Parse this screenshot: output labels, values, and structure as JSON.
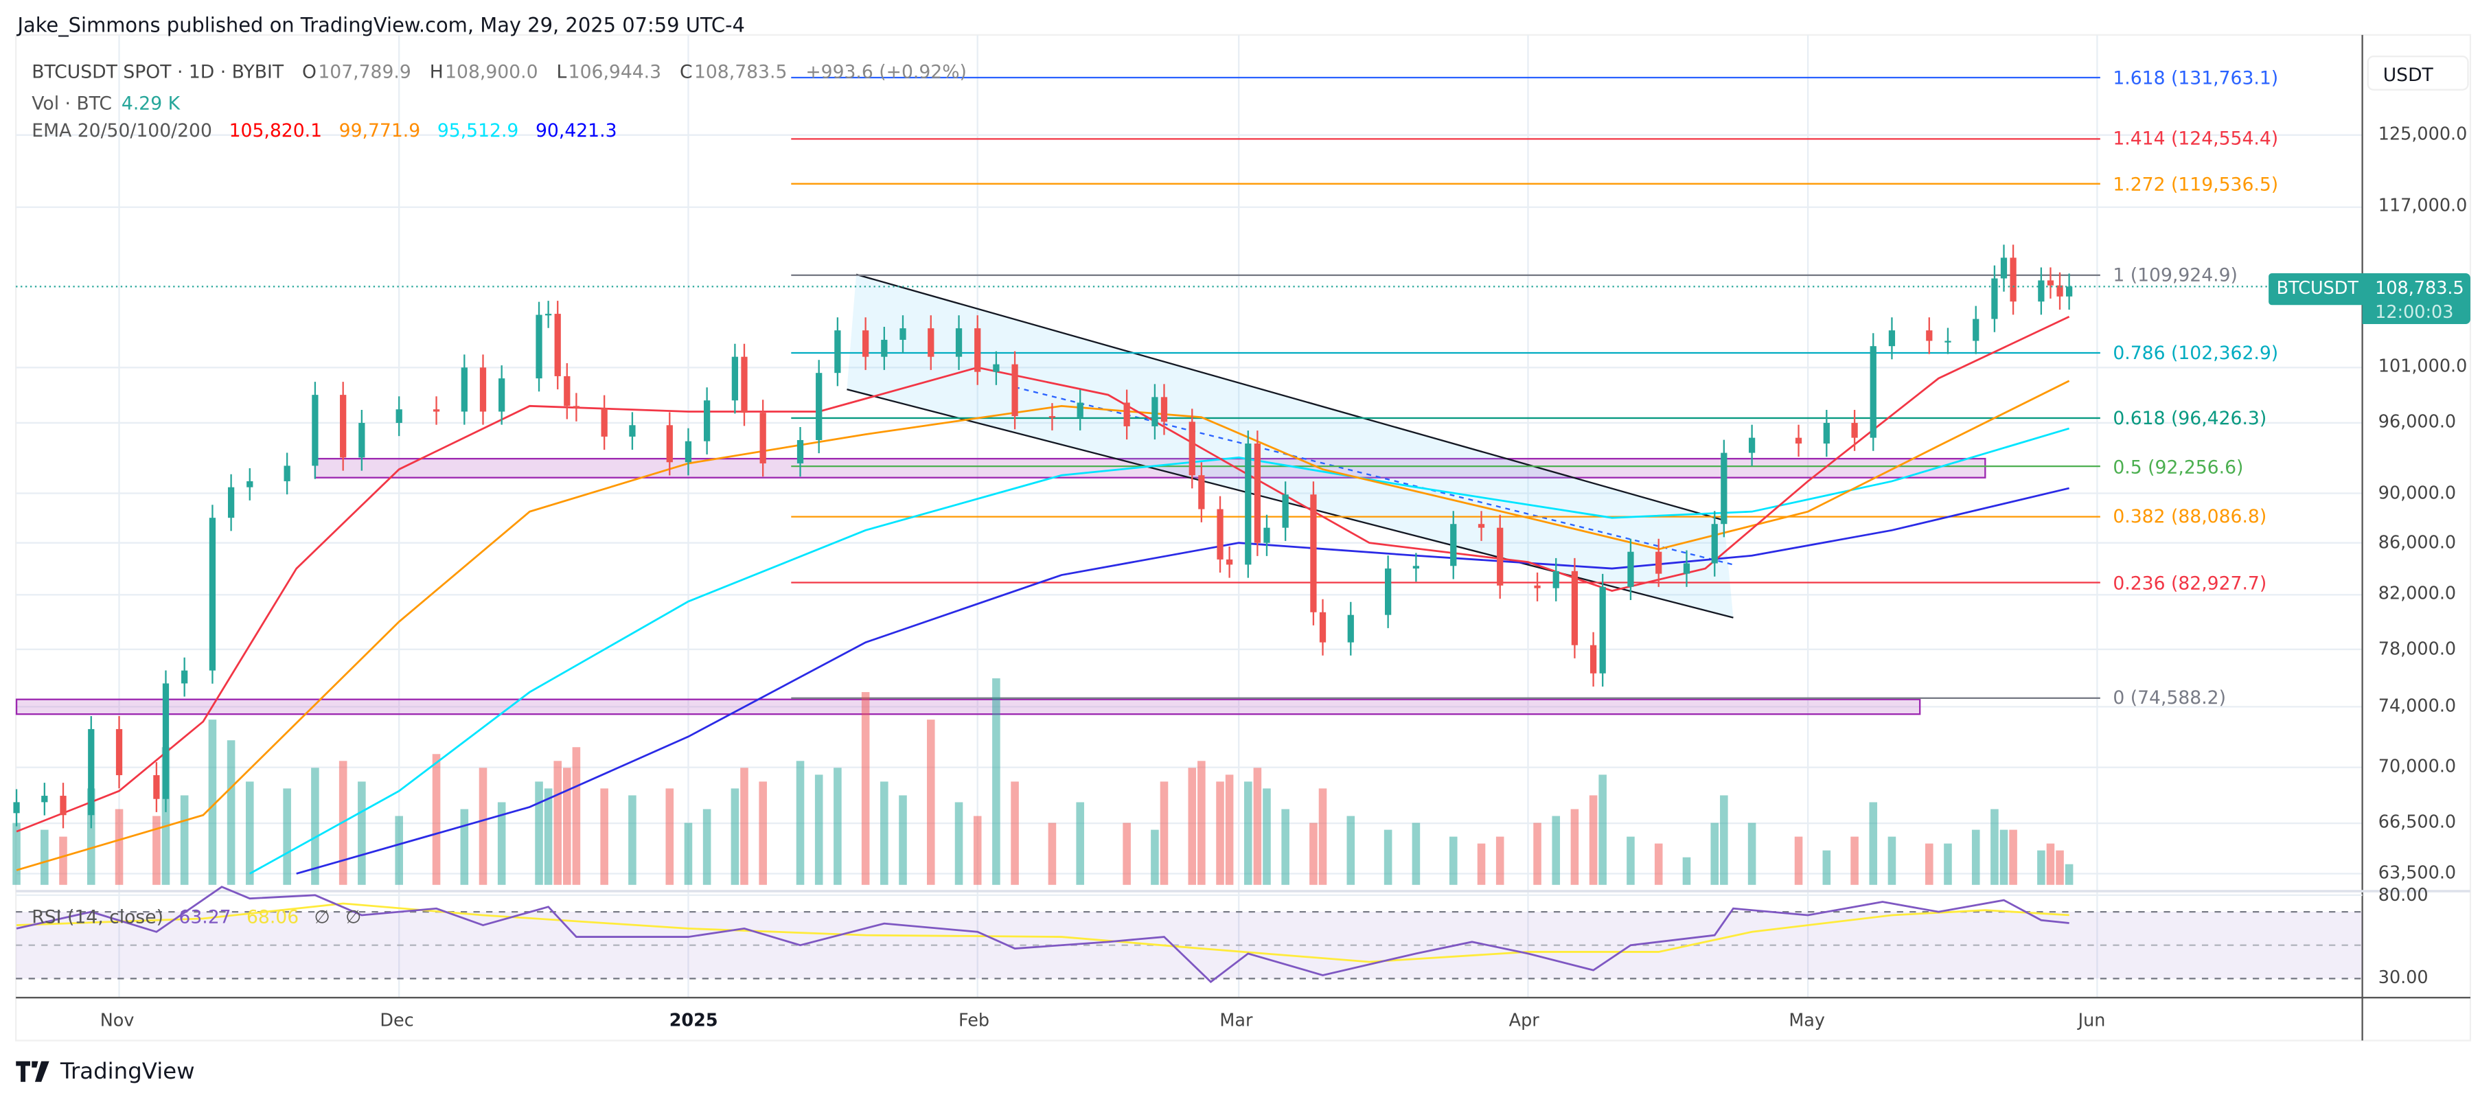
{
  "publisher": "Jake_Simmons published on TradingView.com, May 29, 2025 07:59 UTC-4",
  "legend": {
    "symbol": "BTCUSDT SPOT · 1D · BYBIT",
    "o_label": "O",
    "o": "107,789.9",
    "h_label": "H",
    "h": "108,900.0",
    "l_label": "L",
    "l": "106,944.3",
    "c_label": "C",
    "c": "108,783.5",
    "change": "+993.6 (+0.92%)",
    "vol_label": "Vol · BTC",
    "vol": "4.29 K",
    "ema_label": "EMA 20/50/100/200",
    "ema20": "105,820.1",
    "ema50": "99,771.9",
    "ema100": "95,512.9",
    "ema200": "90,421.3",
    "rsi_label": "RSI (14, close)",
    "rsi": "63.27",
    "rsi_ma": "68.06",
    "rsi_extra1": "∅",
    "rsi_extra2": "∅"
  },
  "price_axis": {
    "currency": "USDT",
    "ticks": [
      "125,000.0",
      "117,000.0",
      "101,000.0",
      "96,000.0",
      "90,000.0",
      "86,000.0",
      "82,000.0",
      "78,000.0",
      "74,000.0",
      "70,000.0",
      "66,500.0",
      "63,500.0"
    ],
    "last_symbol": "BTCUSDT",
    "last_price": "108,783.5",
    "countdown": "12:00:03"
  },
  "rsi_axis": {
    "ticks": [
      "80.00",
      "30.00"
    ]
  },
  "time_axis": {
    "ticks": [
      "Nov",
      "Dec",
      "2025",
      "Feb",
      "Mar",
      "Apr",
      "May",
      "Jun"
    ]
  },
  "brand": "TradingView",
  "colors": {
    "up": "#26a69a",
    "down": "#ef5350",
    "ema20": "#f23645",
    "ema50": "#ff9800",
    "ema100": "#00e5ff",
    "ema200": "#2a2ae6",
    "rsi": "#7e57c2",
    "rsi_ma": "#ffeb3b"
  },
  "chart_data": {
    "type": "candlestick",
    "title": "BTCUSDT SPOT · 1D · BYBIT",
    "y_scale": "log",
    "ylim": [
      62500,
      135000
    ],
    "xlim": [
      "2024-10-20",
      "2025-06-25"
    ],
    "grid": true,
    "fib_levels": [
      {
        "ratio": "1.618",
        "price": 131763.1,
        "label": "1.618 (131,763.1)",
        "color": "#2962ff"
      },
      {
        "ratio": "1.414",
        "price": 124554.4,
        "label": "1.414 (124,554.4)",
        "color": "#f23645"
      },
      {
        "ratio": "1.272",
        "price": 119536.5,
        "label": "1.272 (119,536.5)",
        "color": "#ff9800"
      },
      {
        "ratio": "1",
        "price": 109924.9,
        "label": "1 (109,924.9)",
        "color": "#787b86"
      },
      {
        "ratio": "0.786",
        "price": 102362.9,
        "label": "0.786 (102,362.9)",
        "color": "#00acc1"
      },
      {
        "ratio": "0.618",
        "price": 96426.3,
        "label": "0.618 (96,426.3)",
        "color": "#089981"
      },
      {
        "ratio": "0.5",
        "price": 92256.6,
        "label": "0.5 (92,256.6)",
        "color": "#4caf50"
      },
      {
        "ratio": "0.382",
        "price": 88086.8,
        "label": "0.382 (88,086.8)",
        "color": "#ff9800"
      },
      {
        "ratio": "0.236",
        "price": 82927.7,
        "label": "0.236 (82,927.7)",
        "color": "#f23645"
      },
      {
        "ratio": "0",
        "price": 74588.2,
        "label": "0 (74,588.2)",
        "color": "#787b86"
      }
    ],
    "zones": [
      {
        "from": "2024-11-22",
        "to": "2025-05-20",
        "low": 91300,
        "high": 92900
      },
      {
        "from": "2024-10-21",
        "to": "2025-05-13",
        "low": 73500,
        "high": 74500
      }
    ],
    "channel": {
      "upper": [
        [
          "2025-01-19",
          110000
        ],
        [
          "2025-04-22",
          87800
        ]
      ],
      "lower": [
        [
          "2025-01-18",
          99000
        ],
        [
          "2025-04-23",
          80300
        ]
      ],
      "mid_dashed": [
        [
          "2025-02-05",
          99200
        ],
        [
          "2025-04-23",
          84300
        ]
      ]
    },
    "candles": [
      [
        "2024-10-21",
        67800,
        18
      ],
      [
        "2024-10-24",
        68200,
        16
      ],
      [
        "2024-10-26",
        67000,
        14
      ],
      [
        "2024-10-29",
        72500,
        28
      ],
      [
        "2024-11-01",
        69500,
        22
      ],
      [
        "2024-11-05",
        68000,
        20
      ],
      [
        "2024-11-06",
        75600,
        40
      ],
      [
        "2024-11-08",
        76500,
        26
      ],
      [
        "2024-11-11",
        88000,
        48
      ],
      [
        "2024-11-13",
        90500,
        42
      ],
      [
        "2024-11-15",
        91000,
        30
      ],
      [
        "2024-11-19",
        92300,
        28
      ],
      [
        "2024-11-22",
        98500,
        34
      ],
      [
        "2024-11-25",
        93000,
        36
      ],
      [
        "2024-11-27",
        96000,
        30
      ],
      [
        "2024-12-01",
        97200,
        20
      ],
      [
        "2024-12-05",
        97000,
        38
      ],
      [
        "2024-12-08",
        101000,
        22
      ],
      [
        "2024-12-10",
        97000,
        34
      ],
      [
        "2024-12-12",
        100000,
        24
      ],
      [
        "2024-12-16",
        106000,
        30
      ],
      [
        "2024-12-17",
        106100,
        28
      ],
      [
        "2024-12-18",
        100200,
        36
      ],
      [
        "2024-12-19",
        97500,
        34
      ],
      [
        "2024-12-20",
        97300,
        40
      ],
      [
        "2024-12-23",
        94800,
        28
      ],
      [
        "2024-12-26",
        95800,
        26
      ],
      [
        "2024-12-30",
        92600,
        28
      ],
      [
        "2025-01-01",
        94400,
        18
      ],
      [
        "2025-01-03",
        98000,
        22
      ],
      [
        "2025-01-06",
        102000,
        28
      ],
      [
        "2025-01-07",
        96900,
        34
      ],
      [
        "2025-01-09",
        92500,
        30
      ],
      [
        "2025-01-13",
        94500,
        36
      ],
      [
        "2025-01-15",
        100500,
        32
      ],
      [
        "2025-01-17",
        104500,
        34
      ],
      [
        "2025-01-20",
        102000,
        56
      ],
      [
        "2025-01-22",
        103600,
        30
      ],
      [
        "2025-01-24",
        104700,
        26
      ],
      [
        "2025-01-27",
        102000,
        48
      ],
      [
        "2025-01-30",
        104700,
        24
      ],
      [
        "2025-02-01",
        100600,
        20
      ],
      [
        "2025-02-03",
        101300,
        60
      ],
      [
        "2025-02-05",
        96600,
        30
      ],
      [
        "2025-02-09",
        96500,
        18
      ],
      [
        "2025-02-12",
        97800,
        24
      ],
      [
        "2025-02-17",
        95700,
        18
      ],
      [
        "2025-02-20",
        98300,
        16
      ],
      [
        "2025-02-21",
        96100,
        30
      ],
      [
        "2025-02-24",
        91500,
        34
      ],
      [
        "2025-02-25",
        88700,
        36
      ],
      [
        "2025-02-27",
        84700,
        30
      ],
      [
        "2025-02-28",
        84300,
        32
      ],
      [
        "2025-03-02",
        94200,
        30
      ],
      [
        "2025-03-03",
        86000,
        34
      ],
      [
        "2025-03-04",
        87200,
        28
      ],
      [
        "2025-03-06",
        89900,
        22
      ],
      [
        "2025-03-09",
        80700,
        18
      ],
      [
        "2025-03-10",
        78500,
        28
      ],
      [
        "2025-03-13",
        80500,
        20
      ],
      [
        "2025-03-17",
        84000,
        16
      ],
      [
        "2025-03-20",
        84200,
        18
      ],
      [
        "2025-03-24",
        87500,
        14
      ],
      [
        "2025-03-27",
        87200,
        12
      ],
      [
        "2025-03-29",
        82700,
        14
      ],
      [
        "2025-04-02",
        82500,
        18
      ],
      [
        "2025-04-04",
        83800,
        20
      ],
      [
        "2025-04-06",
        78300,
        22
      ],
      [
        "2025-04-08",
        76300,
        26
      ],
      [
        "2025-04-09",
        82600,
        32
      ],
      [
        "2025-04-12",
        85300,
        14
      ],
      [
        "2025-04-15",
        83600,
        12
      ],
      [
        "2025-04-18",
        84400,
        8
      ],
      [
        "2025-04-21",
        87500,
        18
      ],
      [
        "2025-04-22",
        93400,
        26
      ],
      [
        "2025-04-25",
        94700,
        18
      ],
      [
        "2025-04-30",
        94200,
        14
      ],
      [
        "2025-05-03",
        96000,
        10
      ],
      [
        "2025-05-06",
        94700,
        14
      ],
      [
        "2025-05-08",
        103000,
        24
      ],
      [
        "2025-05-10",
        104500,
        14
      ],
      [
        "2025-05-14",
        103500,
        12
      ],
      [
        "2025-05-16",
        103500,
        12
      ],
      [
        "2025-05-19",
        105600,
        16
      ],
      [
        "2025-05-21",
        109600,
        22
      ],
      [
        "2025-05-22",
        111700,
        16
      ],
      [
        "2025-05-23",
        107300,
        16
      ],
      [
        "2025-05-26",
        109400,
        10
      ],
      [
        "2025-05-27",
        108900,
        12
      ],
      [
        "2025-05-28",
        107800,
        10
      ],
      [
        "2025-05-29",
        108783.5,
        6
      ]
    ],
    "ema": {
      "ema20": [
        [
          "2024-10-21",
          66000
        ],
        [
          "2024-11-01",
          68500
        ],
        [
          "2024-11-10",
          73000
        ],
        [
          "2024-11-20",
          84000
        ],
        [
          "2024-12-01",
          92000
        ],
        [
          "2024-12-15",
          97500
        ],
        [
          "2025-01-01",
          97000
        ],
        [
          "2025-01-15",
          97000
        ],
        [
          "2025-02-01",
          101000
        ],
        [
          "2025-02-15",
          98500
        ],
        [
          "2025-03-01",
          92000
        ],
        [
          "2025-03-15",
          86000
        ],
        [
          "2025-04-01",
          84500
        ],
        [
          "2025-04-10",
          82300
        ],
        [
          "2025-04-20",
          84000
        ],
        [
          "2025-05-01",
          91000
        ],
        [
          "2025-05-15",
          100000
        ],
        [
          "2025-05-29",
          105820.1
        ]
      ],
      "ema50": [
        [
          "2024-10-21",
          63700
        ],
        [
          "2024-11-10",
          67000
        ],
        [
          "2024-12-01",
          80000
        ],
        [
          "2024-12-15",
          88500
        ],
        [
          "2025-01-01",
          92500
        ],
        [
          "2025-01-20",
          95000
        ],
        [
          "2025-02-10",
          97500
        ],
        [
          "2025-02-25",
          96500
        ],
        [
          "2025-03-10",
          92000
        ],
        [
          "2025-04-01",
          88000
        ],
        [
          "2025-04-15",
          85500
        ],
        [
          "2025-05-01",
          88500
        ],
        [
          "2025-05-15",
          94000
        ],
        [
          "2025-05-29",
          99771.9
        ]
      ],
      "ema100": [
        [
          "2024-11-15",
          63500
        ],
        [
          "2024-12-01",
          68500
        ],
        [
          "2024-12-15",
          75000
        ],
        [
          "2025-01-01",
          81500
        ],
        [
          "2025-01-20",
          87000
        ],
        [
          "2025-02-10",
          91500
        ],
        [
          "2025-03-01",
          93000
        ],
        [
          "2025-03-20",
          90500
        ],
        [
          "2025-04-10",
          88000
        ],
        [
          "2025-04-25",
          88500
        ],
        [
          "2025-05-10",
          91000
        ],
        [
          "2025-05-29",
          95512.9
        ]
      ],
      "ema200": [
        [
          "2024-11-20",
          63500
        ],
        [
          "2024-12-15",
          67500
        ],
        [
          "2025-01-01",
          72000
        ],
        [
          "2025-01-20",
          78500
        ],
        [
          "2025-02-10",
          83500
        ],
        [
          "2025-03-01",
          86000
        ],
        [
          "2025-03-20",
          85000
        ],
        [
          "2025-04-10",
          84000
        ],
        [
          "2025-04-25",
          85000
        ],
        [
          "2025-05-10",
          87000
        ],
        [
          "2025-05-29",
          90421.3
        ]
      ]
    },
    "rsi": {
      "levels": [
        70,
        50,
        30
      ],
      "values": [
        [
          "2024-10-21",
          60
        ],
        [
          "2024-10-29",
          70
        ],
        [
          "2024-11-05",
          58
        ],
        [
          "2024-11-12",
          85
        ],
        [
          "2024-11-15",
          78
        ],
        [
          "2024-11-22",
          80
        ],
        [
          "2024-11-27",
          68
        ],
        [
          "2024-12-05",
          72
        ],
        [
          "2024-12-10",
          62
        ],
        [
          "2024-12-17",
          73
        ],
        [
          "2024-12-20",
          55
        ],
        [
          "2025-01-01",
          55
        ],
        [
          "2025-01-07",
          60
        ],
        [
          "2025-01-13",
          50
        ],
        [
          "2025-01-22",
          63
        ],
        [
          "2025-02-01",
          58
        ],
        [
          "2025-02-05",
          48
        ],
        [
          "2025-02-15",
          52
        ],
        [
          "2025-02-21",
          55
        ],
        [
          "2025-02-26",
          28
        ],
        [
          "2025-03-02",
          45
        ],
        [
          "2025-03-10",
          32
        ],
        [
          "2025-03-20",
          45
        ],
        [
          "2025-03-26",
          52
        ],
        [
          "2025-04-01",
          45
        ],
        [
          "2025-04-08",
          35
        ],
        [
          "2025-04-12",
          50
        ],
        [
          "2025-04-21",
          56
        ],
        [
          "2025-04-23",
          72
        ],
        [
          "2025-05-01",
          68
        ],
        [
          "2025-05-09",
          76
        ],
        [
          "2025-05-15",
          70
        ],
        [
          "2025-05-22",
          77
        ],
        [
          "2025-05-26",
          65
        ],
        [
          "2025-05-29",
          63.27
        ]
      ],
      "ma": [
        [
          "2024-10-21",
          62
        ],
        [
          "2024-11-10",
          66
        ],
        [
          "2024-11-25",
          75
        ],
        [
          "2024-12-10",
          68
        ],
        [
          "2025-01-01",
          60
        ],
        [
          "2025-01-20",
          56
        ],
        [
          "2025-02-10",
          55
        ],
        [
          "2025-02-25",
          48
        ],
        [
          "2025-03-15",
          40
        ],
        [
          "2025-04-01",
          46
        ],
        [
          "2025-04-15",
          46
        ],
        [
          "2025-04-25",
          58
        ],
        [
          "2025-05-10",
          68
        ],
        [
          "2025-05-20",
          71
        ],
        [
          "2025-05-29",
          68.06
        ]
      ]
    }
  }
}
